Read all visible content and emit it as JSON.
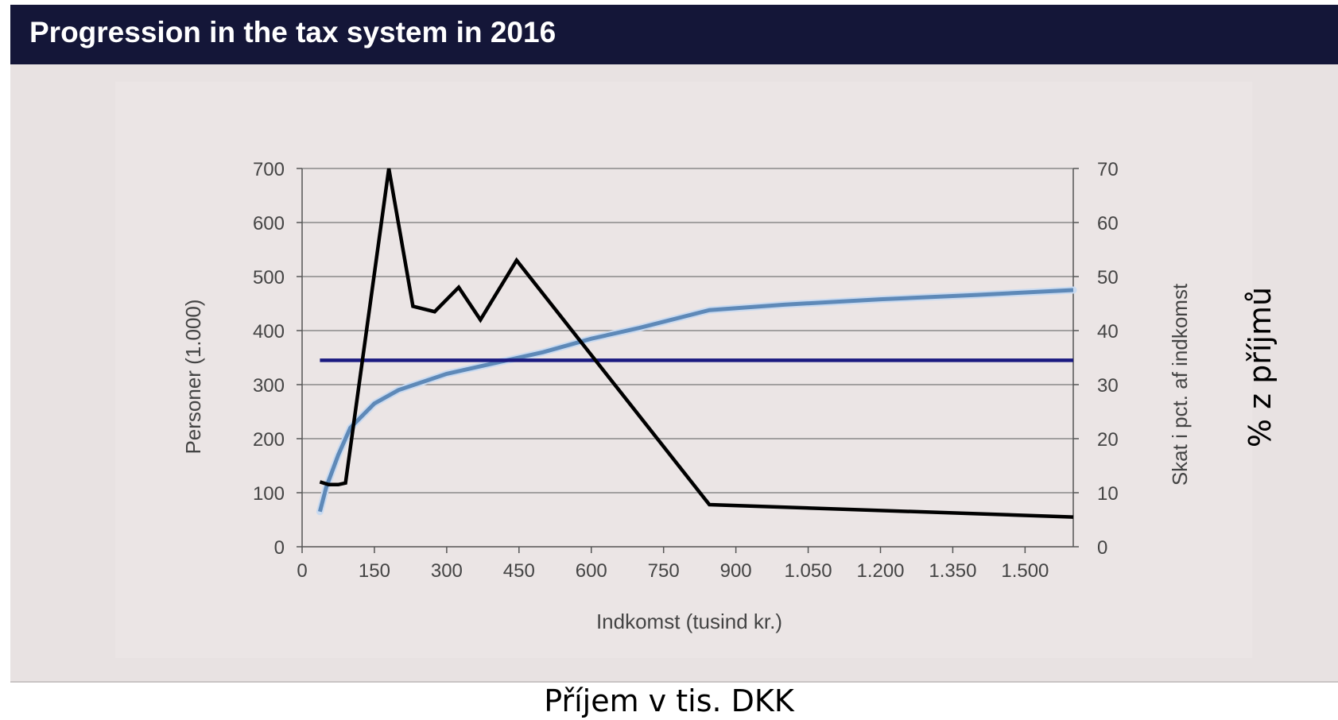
{
  "header": {
    "title": "Progression in the tax system in 2016"
  },
  "annotations": {
    "x_label_overlay": "Příjem v tis. DKK",
    "y_label_overlay": "% z příjmů"
  },
  "chart_data": {
    "type": "line",
    "xlabel": "Indkomst (tusind kr.)",
    "ylabel_left": "Personer (1.000)",
    "ylabel_right": "Skat i pct. af indkomst",
    "xlim": [
      0,
      1600
    ],
    "ylim_left": [
      0,
      700
    ],
    "ylim_right": [
      0,
      70
    ],
    "x_ticks": [
      0,
      150,
      300,
      450,
      600,
      750,
      900,
      1050,
      1200,
      1350,
      1500
    ],
    "x_tick_labels": [
      "0",
      "150",
      "300",
      "450",
      "600",
      "750",
      "900",
      "1.050",
      "1.200",
      "1.350",
      "1.500"
    ],
    "y_left_ticks": [
      0,
      100,
      200,
      300,
      400,
      500,
      600,
      700
    ],
    "y_left_tick_labels": [
      "0",
      "100",
      "200",
      "300",
      "400",
      "500",
      "600",
      "700"
    ],
    "y_right_ticks": [
      0,
      10,
      20,
      30,
      40,
      50,
      60,
      70
    ],
    "y_right_tick_labels": [
      "0",
      "10",
      "20",
      "30",
      "40",
      "50",
      "60",
      "70"
    ],
    "grid": true,
    "series": [
      {
        "axis": "left",
        "color": "#000000",
        "x": [
          37,
          55,
          75,
          90,
          180,
          230,
          275,
          325,
          370,
          445,
          845,
          1600
        ],
        "y": [
          120,
          115,
          115,
          118,
          700,
          445,
          435,
          480,
          420,
          530,
          78,
          55
        ]
      },
      {
        "axis": "right",
        "color": "#5e89b8",
        "x": [
          37,
          50,
          75,
          100,
          150,
          200,
          250,
          300,
          400,
          500,
          600,
          700,
          845,
          1000,
          1200,
          1400,
          1600
        ],
        "y": [
          6.5,
          11,
          17,
          22,
          26.5,
          29,
          30.5,
          32,
          34,
          36,
          38.5,
          40.5,
          43.8,
          44.8,
          45.8,
          46.6,
          47.5
        ]
      },
      {
        "axis": "right",
        "color": "#1a1a80",
        "x": [
          37,
          1600
        ],
        "y": [
          34.5,
          34.5
        ]
      }
    ]
  }
}
